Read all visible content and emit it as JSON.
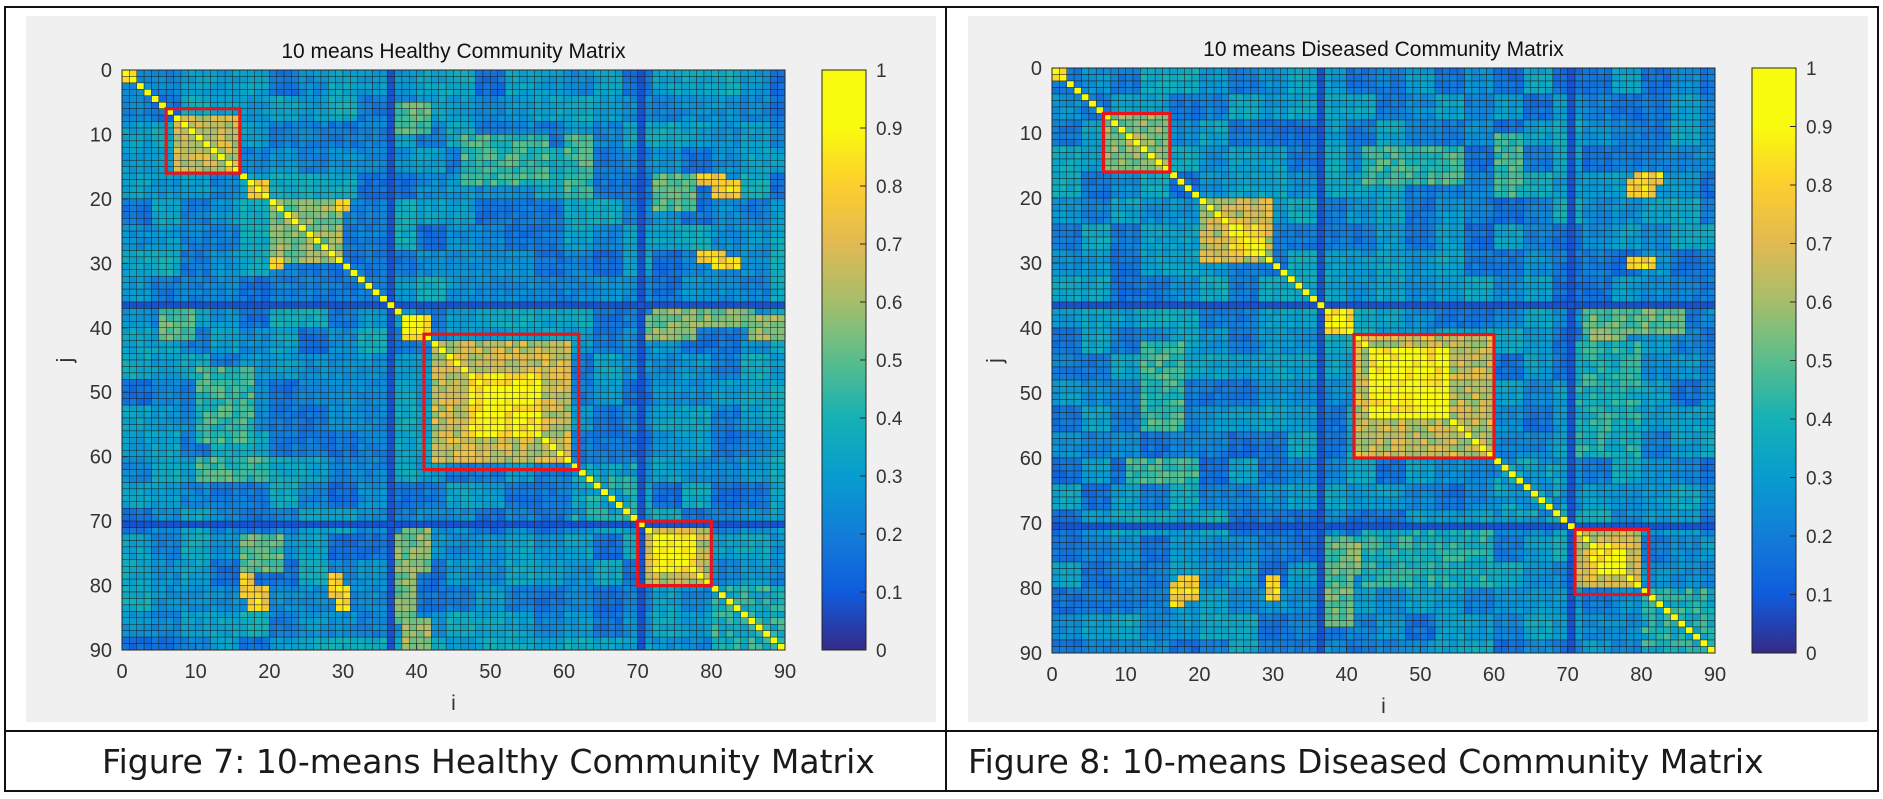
{
  "figures": [
    {
      "caption": "Figure 7: 10-means Healthy Community Matrix",
      "title": "10 means Healthy Community Matrix"
    },
    {
      "caption": "Figure 8: 10-means Diseased Community Matrix",
      "title": "10 means Diseased Community Matrix"
    }
  ],
  "chart_data": [
    {
      "type": "heatmap",
      "title": "10 means Healthy Community Matrix",
      "xlabel": "i",
      "ylabel": "j",
      "size": 90,
      "xlim": [
        0,
        90
      ],
      "ylim": [
        0,
        90
      ],
      "y_direction": "reversed",
      "x_ticks": [
        "0",
        "10",
        "20",
        "30",
        "40",
        "50",
        "60",
        "70",
        "80",
        "90"
      ],
      "y_ticks": [
        "0",
        "10",
        "20",
        "30",
        "40",
        "50",
        "60",
        "70",
        "80",
        "90"
      ],
      "colorbar": {
        "colormap": "parula",
        "range": [
          0,
          1
        ],
        "ticks": [
          "0",
          "0.1",
          "0.2",
          "0.3",
          "0.4",
          "0.5",
          "0.6",
          "0.7",
          "0.8",
          "0.9",
          "1"
        ]
      },
      "diagonal_value": 1,
      "background_level": 0.2,
      "blocks": [
        {
          "range": [
            0,
            2
          ],
          "value": 0.9
        },
        {
          "range": [
            7,
            16
          ],
          "value": 0.65
        },
        {
          "range": [
            17,
            20
          ],
          "value": 0.75
        },
        {
          "range": [
            20,
            30
          ],
          "value": 0.55
        },
        {
          "range": [
            38,
            42
          ],
          "value": 0.85
        },
        {
          "range": [
            42,
            61
          ],
          "value": 0.65
        },
        {
          "range": [
            47,
            57
          ],
          "value": 0.88
        },
        {
          "range": [
            61,
            70
          ],
          "value": 0.35
        },
        {
          "range": [
            71,
            80
          ],
          "value": 0.65
        },
        {
          "range": [
            72,
            78
          ],
          "value": 0.88
        },
        {
          "range": [
            80,
            90
          ],
          "value": 0.4
        }
      ],
      "offdiag": [
        {
          "rows": [
            38,
            42
          ],
          "cols": [
            70,
            78
          ],
          "value": 0.55
        },
        {
          "rows": [
            38,
            42
          ],
          "cols": [
            85,
            90
          ],
          "value": 0.6
        },
        {
          "rows": [
            17,
            20
          ],
          "cols": [
            80,
            84
          ],
          "value": 0.8
        },
        {
          "rows": [
            29,
            31
          ],
          "cols": [
            80,
            84
          ],
          "value": 0.8
        },
        {
          "rows": [
            29,
            31
          ],
          "cols": [
            20,
            22
          ],
          "value": 0.8
        },
        {
          "rows": [
            72,
            86
          ],
          "cols": [
            36,
            40
          ],
          "value": 0.55
        },
        {
          "rows": [
            78,
            82
          ],
          "cols": [
            28,
            30
          ],
          "value": 0.8
        },
        {
          "rows": [
            78,
            82
          ],
          "cols": [
            16,
            18
          ],
          "value": 0.75
        },
        {
          "rows": [
            72,
            78
          ],
          "cols": [
            16,
            22
          ],
          "value": 0.5
        },
        {
          "rows": [
            10,
            18
          ],
          "cols": [
            46,
            58
          ],
          "value": 0.45
        },
        {
          "rows": [
            5,
            10
          ],
          "cols": [
            36,
            42
          ],
          "value": 0.5
        },
        {
          "rows": [
            60,
            64
          ],
          "cols": [
            10,
            20
          ],
          "value": 0.45
        }
      ],
      "highlight_boxes": [
        {
          "from": [
            6,
            6
          ],
          "to": [
            16,
            16
          ]
        },
        {
          "from": [
            41,
            41
          ],
          "to": [
            62,
            62
          ]
        },
        {
          "from": [
            70,
            70
          ],
          "to": [
            80,
            80
          ]
        }
      ]
    },
    {
      "type": "heatmap",
      "title": "10 means Diseased Community Matrix",
      "xlabel": "i",
      "ylabel": "j",
      "size": 90,
      "xlim": [
        0,
        90
      ],
      "ylim": [
        0,
        90
      ],
      "y_direction": "reversed",
      "x_ticks": [
        "0",
        "10",
        "20",
        "30",
        "40",
        "50",
        "60",
        "70",
        "80",
        "90"
      ],
      "y_ticks": [
        "0",
        "10",
        "20",
        "30",
        "40",
        "50",
        "60",
        "70",
        "80",
        "90"
      ],
      "colorbar": {
        "colormap": "parula",
        "range": [
          0,
          1
        ],
        "ticks": [
          "0",
          "0.1",
          "0.2",
          "0.3",
          "0.4",
          "0.5",
          "0.6",
          "0.7",
          "0.8",
          "0.9",
          "1"
        ]
      },
      "diagonal_value": 1,
      "background_level": 0.2,
      "blocks": [
        {
          "range": [
            0,
            2
          ],
          "value": 0.9
        },
        {
          "range": [
            7,
            16
          ],
          "value": 0.55
        },
        {
          "range": [
            20,
            30
          ],
          "value": 0.65
        },
        {
          "range": [
            24,
            29
          ],
          "value": 0.8
        },
        {
          "range": [
            37,
            41
          ],
          "value": 0.85
        },
        {
          "range": [
            41,
            60
          ],
          "value": 0.65
        },
        {
          "range": [
            43,
            54
          ],
          "value": 0.9
        },
        {
          "range": [
            60,
            70
          ],
          "value": 0.3
        },
        {
          "range": [
            71,
            80
          ],
          "value": 0.65
        },
        {
          "range": [
            73,
            78
          ],
          "value": 0.88
        },
        {
          "range": [
            80,
            90
          ],
          "value": 0.4
        }
      ],
      "offdiag": [
        {
          "rows": [
            38,
            43
          ],
          "cols": [
            73,
            78
          ],
          "value": 0.55
        },
        {
          "rows": [
            17,
            20
          ],
          "cols": [
            78,
            82
          ],
          "value": 0.8
        },
        {
          "rows": [
            29,
            31
          ],
          "cols": [
            78,
            82
          ],
          "value": 0.8
        },
        {
          "rows": [
            72,
            86
          ],
          "cols": [
            36,
            41
          ],
          "value": 0.5
        },
        {
          "rows": [
            79,
            83
          ],
          "cols": [
            16,
            18
          ],
          "value": 0.8
        },
        {
          "rows": [
            70,
            80
          ],
          "cols": [
            42,
            60
          ],
          "value": 0.4
        },
        {
          "rows": [
            12,
            18
          ],
          "cols": [
            42,
            56
          ],
          "value": 0.45
        },
        {
          "rows": [
            60,
            64
          ],
          "cols": [
            10,
            20
          ],
          "value": 0.45
        }
      ],
      "highlight_boxes": [
        {
          "from": [
            7,
            7
          ],
          "to": [
            16,
            16
          ]
        },
        {
          "from": [
            41,
            41
          ],
          "to": [
            60,
            60
          ]
        },
        {
          "from": [
            71,
            71
          ],
          "to": [
            81,
            81
          ]
        }
      ]
    }
  ]
}
